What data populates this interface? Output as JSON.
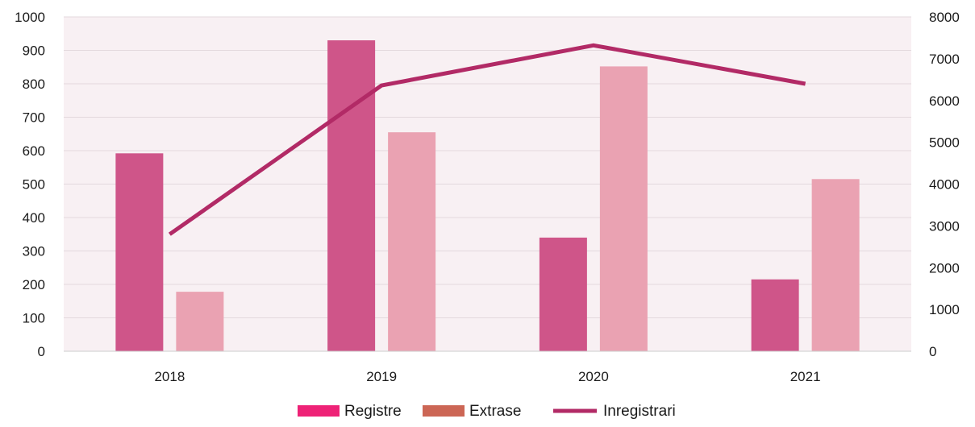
{
  "chart_data": {
    "type": "bar",
    "categories": [
      "2018",
      "2019",
      "2020",
      "2021"
    ],
    "series": [
      {
        "name": "Registre",
        "kind": "bar",
        "axis": "left",
        "values": [
          592,
          930,
          340,
          215
        ],
        "color": "#cf5589"
      },
      {
        "name": "Extrase",
        "kind": "bar",
        "axis": "left",
        "values": [
          178,
          655,
          852,
          515
        ],
        "color": "#eaa2b2"
      },
      {
        "name": "Inregistrari",
        "kind": "line",
        "axis": "right",
        "values": [
          2800,
          6360,
          7320,
          6400
        ],
        "color": "#b22a66"
      }
    ],
    "left_axis": {
      "min": 0,
      "max": 1000,
      "ticks": [
        "0",
        "100",
        "200",
        "300",
        "400",
        "500",
        "600",
        "700",
        "800",
        "900",
        "1000"
      ]
    },
    "right_axis": {
      "min": 0,
      "max": 8000,
      "ticks": [
        "0",
        "1000",
        "2000",
        "3000",
        "4000",
        "5000",
        "6000",
        "7000",
        "8000"
      ]
    },
    "legend": {
      "placement": "bottom",
      "items": [
        {
          "label": "Registre",
          "swatch": "box",
          "color": "#ee2277"
        },
        {
          "label": "Extrase",
          "swatch": "box",
          "color": "#cc6655"
        },
        {
          "label": "Inregistrari",
          "swatch": "line",
          "color": "#b22a66"
        }
      ]
    },
    "plot_background": "#f8f0f3",
    "grid": true
  }
}
